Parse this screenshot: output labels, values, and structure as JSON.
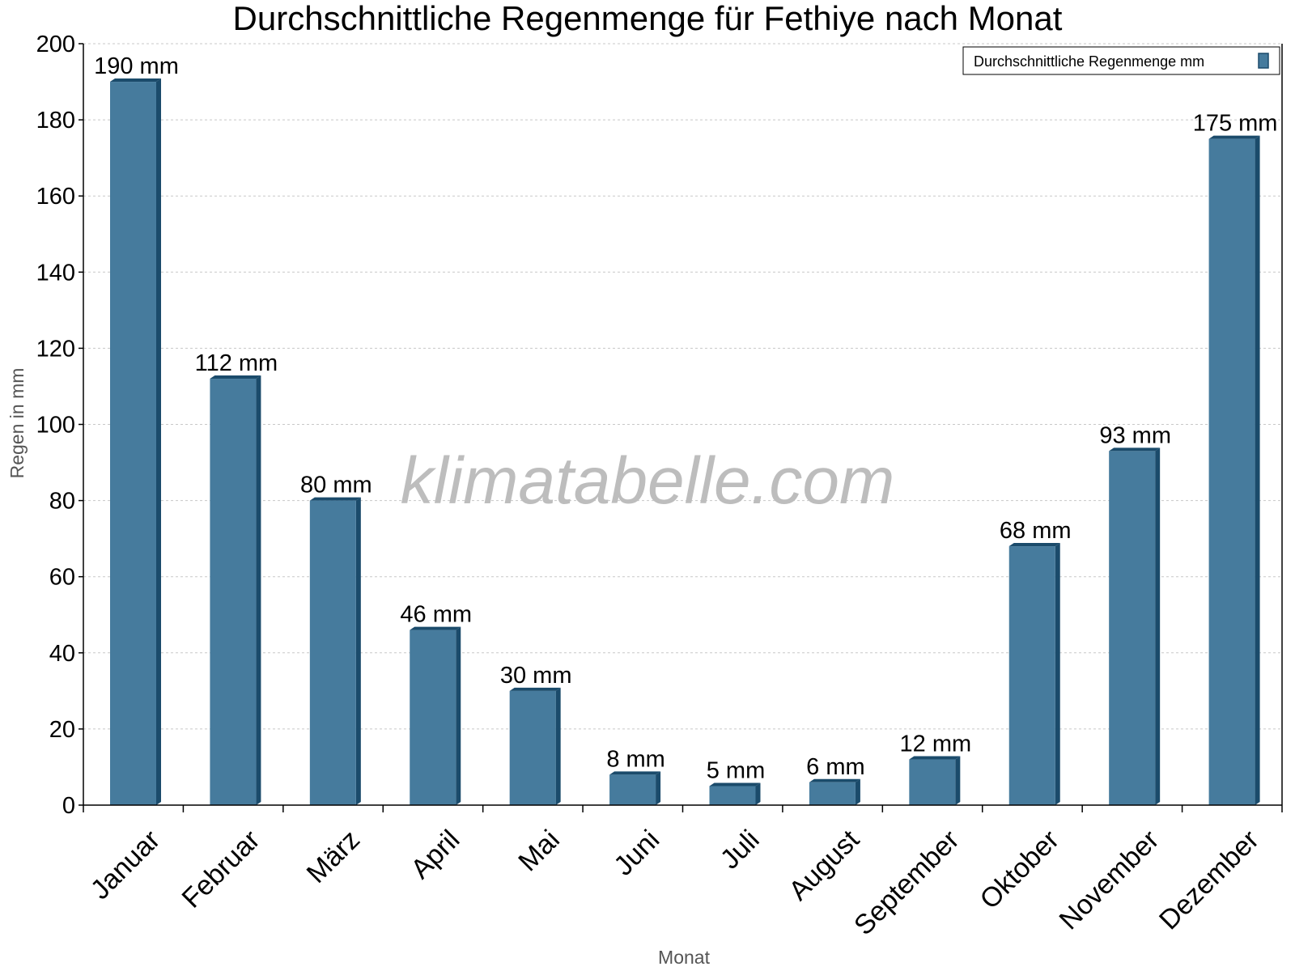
{
  "chart_data": {
    "type": "bar",
    "title": "Durchschnittliche Regenmenge für Fethiye nach Monat",
    "xlabel": "Monat",
    "ylabel": "Regen in mm",
    "ylim": [
      0,
      200
    ],
    "yticks": [
      0,
      20,
      40,
      60,
      80,
      100,
      120,
      140,
      160,
      180,
      200
    ],
    "grid": true,
    "legend_position": "top-right",
    "categories": [
      "Januar",
      "Februar",
      "März",
      "April",
      "Mai",
      "Juni",
      "Juli",
      "August",
      "September",
      "Oktober",
      "November",
      "Dezember"
    ],
    "series": [
      {
        "name": "Durchschnittliche Regenmenge mm",
        "values": [
          190,
          112,
          80,
          46,
          30,
          8,
          5,
          6,
          12,
          68,
          93,
          175
        ],
        "color": "#467b9d",
        "side_color": "#1b4b6b"
      }
    ],
    "data_labels": [
      "190 mm",
      "112 mm",
      "80 mm",
      "46 mm",
      "30 mm",
      "8 mm",
      "5 mm",
      "6 mm",
      "12 mm",
      "68 mm",
      "93 mm",
      "175 mm"
    ],
    "watermark": "klimatabelle.com"
  }
}
